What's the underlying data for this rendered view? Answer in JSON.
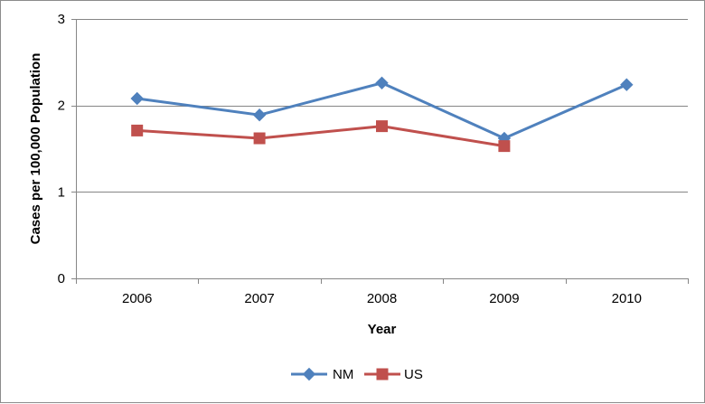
{
  "chart_data": {
    "type": "line",
    "title": "",
    "xlabel": "Year",
    "ylabel": "Cases per 100,000 Population",
    "categories": [
      "2006",
      "2007",
      "2008",
      "2009",
      "2010"
    ],
    "ylim": [
      0,
      3
    ],
    "yticks": [
      "0",
      "1",
      "2",
      "3"
    ],
    "grid": true,
    "legend": "bottom",
    "series": [
      {
        "name": "NM",
        "color": "#4F81BD",
        "marker": "diamond",
        "values": [
          2.08,
          1.89,
          2.26,
          1.62,
          2.24
        ]
      },
      {
        "name": "US",
        "color": "#C0504D",
        "marker": "square",
        "values": [
          1.71,
          1.62,
          1.76,
          1.53,
          null
        ]
      }
    ]
  }
}
